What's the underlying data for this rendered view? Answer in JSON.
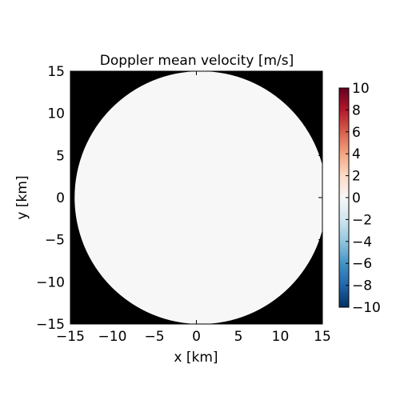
{
  "chart_data": {
    "type": "heatmap",
    "title": "Doppler mean velocity [m/s]",
    "xlabel": "x [km]",
    "ylabel": "y [km]",
    "xlim": [
      -15,
      15
    ],
    "ylim": [
      -15,
      15
    ],
    "x_ticks": [
      -15,
      -10,
      -5,
      0,
      5,
      10,
      15
    ],
    "y_ticks": [
      -15,
      -10,
      -5,
      0,
      5,
      10,
      15
    ],
    "x_tick_labels": [
      "−15",
      "−10",
      "−5",
      "0",
      "5",
      "10",
      "15"
    ],
    "y_tick_labels": [
      "−15",
      "−10",
      "−5",
      "0",
      "5",
      "10",
      "15"
    ],
    "grid": false,
    "domain": {
      "shape": "disk",
      "center": [
        0.5,
        0
      ],
      "radius": 15,
      "value": 0
    },
    "outside_color": "#000000",
    "colorbar": {
      "colormap": "RdBu_r",
      "vmin": -10,
      "vmax": 10,
      "ticks": [
        -10,
        -8,
        -6,
        -4,
        -2,
        0,
        2,
        4,
        6,
        8,
        10
      ],
      "tick_labels": [
        "−10",
        "−8",
        "−6",
        "−4",
        "−2",
        "0",
        "2",
        "4",
        "6",
        "8",
        "10"
      ],
      "colors": [
        "#053061",
        "#2166ac",
        "#4393c3",
        "#92c5de",
        "#d1e5f0",
        "#f7f7f7",
        "#fddbc7",
        "#f4a582",
        "#d6604d",
        "#b2182b",
        "#67001f"
      ]
    }
  }
}
